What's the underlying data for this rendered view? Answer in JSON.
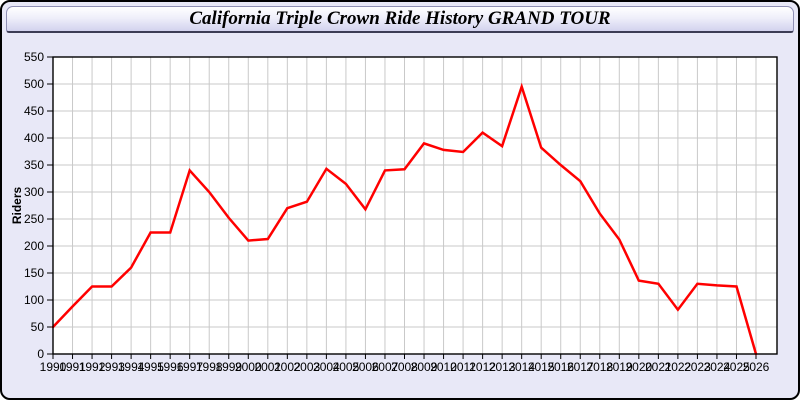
{
  "window": {
    "title": "California Triple Crown Ride History GRAND TOUR"
  },
  "chart_data": {
    "type": "line",
    "title": "California Triple Crown Ride History GRAND TOUR",
    "xlabel": "",
    "ylabel": "Riders",
    "x": [
      1990,
      1991,
      1992,
      1993,
      1994,
      1995,
      1996,
      1997,
      1998,
      1999,
      2000,
      2001,
      2002,
      2003,
      2004,
      2005,
      2006,
      2007,
      2008,
      2009,
      2010,
      2011,
      2012,
      2013,
      2014,
      2015,
      2016,
      2017,
      2018,
      2019,
      2020,
      2021,
      2022,
      2023,
      2024,
      2025,
      2026
    ],
    "series": [
      {
        "name": "Riders",
        "color": "#ff0000",
        "values": [
          50,
          88,
          125,
          125,
          160,
          225,
          225,
          340,
          300,
          252,
          210,
          213,
          270,
          282,
          343,
          315,
          268,
          340,
          342,
          390,
          378,
          374,
          410,
          385,
          495,
          382,
          350,
          320,
          260,
          212,
          136,
          130,
          82,
          130,
          127,
          125,
          0
        ]
      }
    ],
    "ylim": [
      0,
      550
    ],
    "yticks": [
      0,
      50,
      100,
      150,
      200,
      250,
      300,
      350,
      400,
      450,
      500,
      550
    ],
    "grid": true,
    "legend_position": "none",
    "plot_background": "#ffffff",
    "grid_color": "#c9c9c9",
    "axis_color": "#000000",
    "tick_label_color": "#000000",
    "page_background": "#e8e8f7"
  }
}
